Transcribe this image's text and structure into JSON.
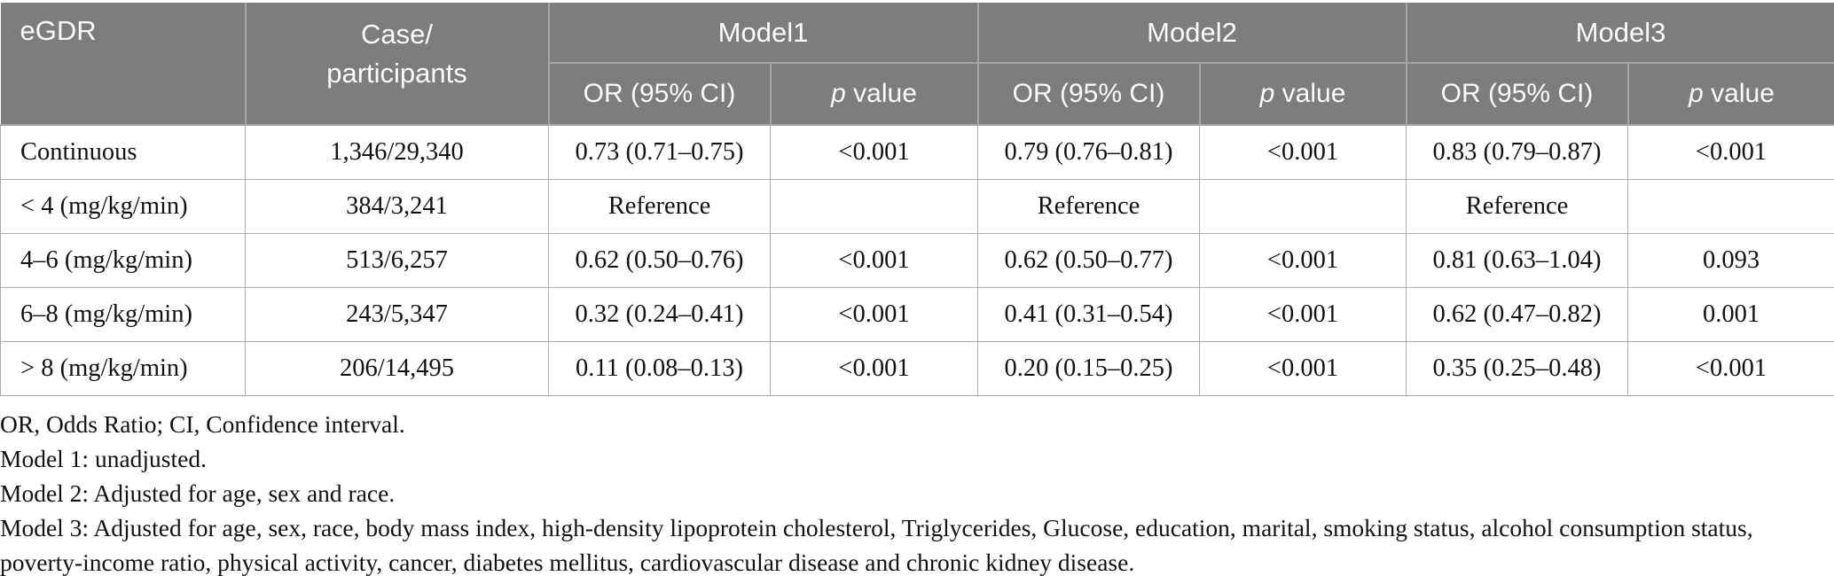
{
  "table": {
    "header": {
      "egdr_label": "eGDR",
      "case_label": "Case/\nparticipants",
      "models": {
        "m1": "Model1",
        "m2": "Model2",
        "m3": "Model3"
      },
      "or_label": "OR (95% CI)",
      "p_italic": "p",
      "p_rest": "value"
    },
    "rows": [
      {
        "egdr": "Continuous",
        "case": "1,346/29,340",
        "m1_or": "0.73 (0.71–0.75)",
        "m1_p": "<0.001",
        "m2_or": "0.79 (0.76–0.81)",
        "m2_p": "<0.001",
        "m3_or": "0.83 (0.79–0.87)",
        "m3_p": "<0.001"
      },
      {
        "egdr": "< 4 (mg/kg/min)",
        "case": "384/3,241",
        "m1_or": "Reference",
        "m1_p": "",
        "m2_or": "Reference",
        "m2_p": "",
        "m3_or": "Reference",
        "m3_p": ""
      },
      {
        "egdr": "4–6 (mg/kg/min)",
        "case": "513/6,257",
        "m1_or": "0.62 (0.50–0.76)",
        "m1_p": "<0.001",
        "m2_or": "0.62 (0.50–0.77)",
        "m2_p": "<0.001",
        "m3_or": "0.81 (0.63–1.04)",
        "m3_p": "0.093"
      },
      {
        "egdr": "6–8 (mg/kg/min)",
        "case": "243/5,347",
        "m1_or": "0.32 (0.24–0.41)",
        "m1_p": "<0.001",
        "m2_or": "0.41 (0.31–0.54)",
        "m2_p": "<0.001",
        "m3_or": "0.62 (0.47–0.82)",
        "m3_p": "0.001"
      },
      {
        "egdr": "> 8 (mg/kg/min)",
        "case": "206/14,495",
        "m1_or": "0.11 (0.08–0.13)",
        "m1_p": "<0.001",
        "m2_or": "0.20 (0.15–0.25)",
        "m2_p": "<0.001",
        "m3_or": "0.35 (0.25–0.48)",
        "m3_p": "<0.001"
      }
    ],
    "footnotes": [
      "OR, Odds Ratio; CI, Confidence interval.",
      "Model 1: unadjusted.",
      "Model 2: Adjusted for age, sex and race.",
      "Model 3: Adjusted for age, sex, race, body mass index, high-density lipoprotein cholesterol, Triglycerides, Glucose, education, marital, smoking status, alcohol consumption status, poverty-income ratio, physical activity, cancer, diabetes mellitus, cardiovascular disease and chronic kidney disease."
    ]
  },
  "colors": {
    "header_bg": "#7d7d7d",
    "header_text": "#fbfbfb",
    "header_divider": "#a5a5a5",
    "body_border": "#aeaeae",
    "body_text": "#121212"
  }
}
